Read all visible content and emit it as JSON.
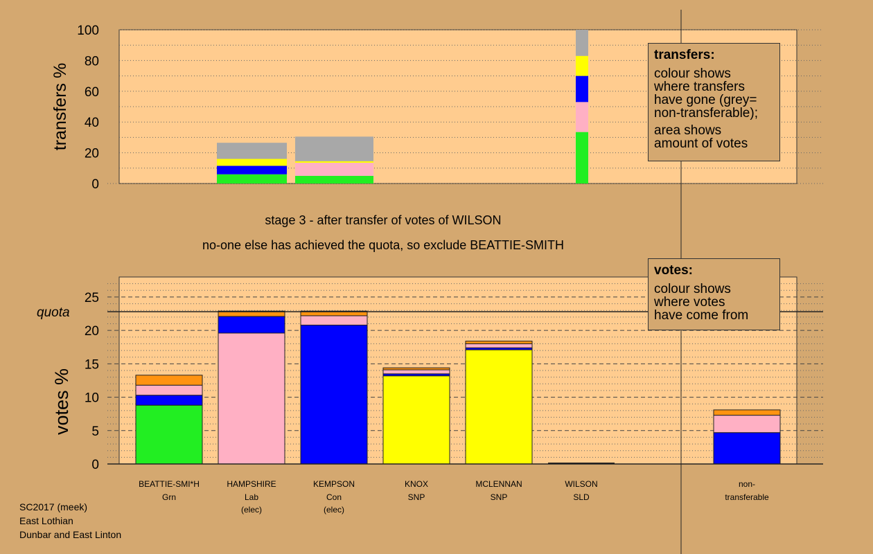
{
  "colors": {
    "page_bg": "#d4a870",
    "plot_bg": "#ffcc8f",
    "green": "#22ee22",
    "blue": "#0000ff",
    "pink": "#ffb0c4",
    "yellow": "#ffff00",
    "orange": "#ff9310",
    "grey": "#a8a8a8"
  },
  "captions": {
    "line1": "stage 3 - after transfer of votes of WILSON",
    "line2": "no-one else has achieved the quota, so exclude BEATTIE-SMITH"
  },
  "transfers_box": {
    "heading": "transfers:",
    "lines1": [
      "colour shows",
      "where transfers",
      "have gone (grey=",
      "non-transferable);"
    ],
    "lines2": [
      "area shows",
      "amount of votes"
    ]
  },
  "votes_box": {
    "heading": "votes:",
    "lines": [
      "colour shows",
      "where votes",
      "have come from"
    ]
  },
  "footer": {
    "lines": [
      "SC2017 (meek)",
      "East Lothian",
      "Dunbar and East Linton"
    ]
  },
  "chart_data": [
    {
      "type": "bar",
      "stacked": true,
      "ylabel": "transfers %",
      "ylim": [
        0,
        100
      ],
      "yticks": [
        0,
        20,
        40,
        60,
        80,
        100
      ],
      "grid": "dotted",
      "bars": [
        {
          "category": "HAMPSHIRE",
          "segments": [
            {
              "color": "green",
              "value": 6
            },
            {
              "color": "blue",
              "value": 5.5
            },
            {
              "color": "yellow",
              "value": 4.5
            },
            {
              "color": "grey",
              "value": 10.5
            }
          ]
        },
        {
          "category": "KEMPSON",
          "segments": [
            {
              "color": "green",
              "value": 5
            },
            {
              "color": "pink",
              "value": 8.5
            },
            {
              "color": "yellow",
              "value": 1
            },
            {
              "color": "grey",
              "value": 16
            }
          ]
        },
        {
          "category": "WILSON",
          "segments": [
            {
              "color": "green",
              "value": 33.5
            },
            {
              "color": "pink",
              "value": 19.5
            },
            {
              "color": "blue",
              "value": 17
            },
            {
              "color": "yellow",
              "value": 13
            },
            {
              "color": "grey",
              "value": 17
            }
          ]
        }
      ]
    },
    {
      "type": "bar",
      "stacked": true,
      "ylabel": "votes %",
      "ylim": [
        0,
        28
      ],
      "yticks": [
        0,
        5,
        10,
        15,
        20,
        25
      ],
      "quota": 22.8,
      "quota_label": "quota",
      "grid": "dotted",
      "bars": [
        {
          "name": "BEATTIE-SMI*H",
          "party": "Grn",
          "note": "",
          "segments": [
            {
              "color": "green",
              "value": 8.8
            },
            {
              "color": "blue",
              "value": 1.5
            },
            {
              "color": "pink",
              "value": 1.5
            },
            {
              "color": "orange",
              "value": 1.5
            }
          ]
        },
        {
          "name": "HAMPSHIRE",
          "party": "Lab",
          "note": "(elec)",
          "segments": [
            {
              "color": "pink",
              "value": 19.6
            },
            {
              "color": "blue",
              "value": 2.5
            },
            {
              "color": "orange",
              "value": 0.8
            }
          ]
        },
        {
          "name": "KEMPSON",
          "party": "Con",
          "note": "(elec)",
          "segments": [
            {
              "color": "blue",
              "value": 20.8
            },
            {
              "color": "pink",
              "value": 1.4
            },
            {
              "color": "orange",
              "value": 0.7
            }
          ]
        },
        {
          "name": "KNOX",
          "party": "SNP",
          "note": "",
          "segments": [
            {
              "color": "yellow",
              "value": 13.2
            },
            {
              "color": "blue",
              "value": 0.3
            },
            {
              "color": "pink",
              "value": 0.6
            },
            {
              "color": "orange",
              "value": 0.3
            }
          ]
        },
        {
          "name": "MCLENNAN",
          "party": "SNP",
          "note": "",
          "segments": [
            {
              "color": "yellow",
              "value": 17.1
            },
            {
              "color": "blue",
              "value": 0.3
            },
            {
              "color": "pink",
              "value": 0.6
            },
            {
              "color": "orange",
              "value": 0.4
            }
          ]
        },
        {
          "name": "WILSON",
          "party": "SLD",
          "note": "",
          "segments": []
        },
        {
          "name": "non-",
          "party": "transferable",
          "note": "",
          "segments": [
            {
              "color": "blue",
              "value": 4.7
            },
            {
              "color": "pink",
              "value": 2.6
            },
            {
              "color": "orange",
              "value": 0.8
            }
          ]
        }
      ]
    }
  ]
}
